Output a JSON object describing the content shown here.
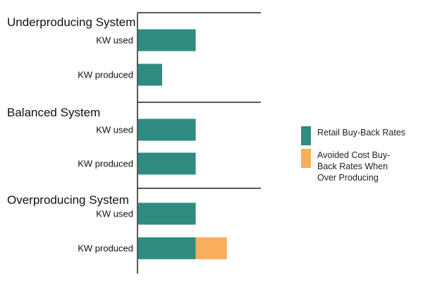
{
  "chart_data": {
    "type": "bar",
    "orientation": "horizontal",
    "stacked": true,
    "grid": false,
    "legend_position": "right",
    "xlim": [
      0,
      100
    ],
    "series": [
      {
        "name": "Retail Buy-Back Rates",
        "color": "#2E8B80"
      },
      {
        "name": "Avoided Cost Buy-Back Rates When Over Producing",
        "color": "#F9AE5B"
      }
    ],
    "panels": [
      {
        "title": "Underproducing System",
        "rows": [
          {
            "label": "KW used",
            "values": [
              48,
              0
            ]
          },
          {
            "label": "KW produced",
            "values": [
              20,
              0
            ]
          }
        ]
      },
      {
        "title": "Balanced System",
        "rows": [
          {
            "label": "KW used",
            "values": [
              48,
              0
            ]
          },
          {
            "label": "KW produced",
            "values": [
              48,
              0
            ]
          }
        ]
      },
      {
        "title": "Overproducing System",
        "rows": [
          {
            "label": "KW used",
            "values": [
              48,
              0
            ]
          },
          {
            "label": "KW produced",
            "values": [
              48,
              26
            ]
          }
        ]
      }
    ]
  },
  "legend": {
    "items": [
      {
        "lines": [
          "Retail Buy-Back Rates"
        ],
        "color": "#2E8B80"
      },
      {
        "lines": [
          "Avoided Cost Buy-",
          "Back Rates When",
          "Over Producing"
        ],
        "color": "#F9AE5B"
      }
    ]
  }
}
